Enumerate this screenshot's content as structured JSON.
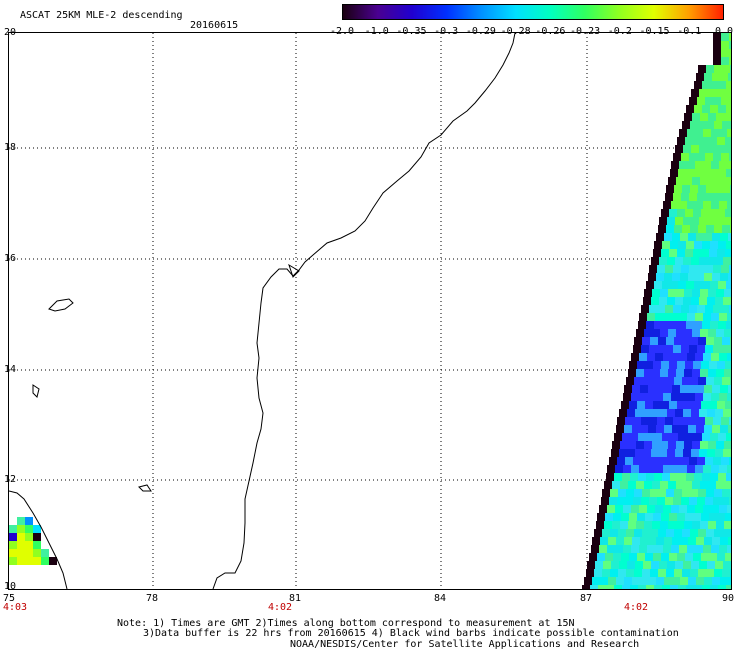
{
  "header": {
    "title": "ASCAT 25KM MLE-2 descending",
    "date": "20160615"
  },
  "colorbar": {
    "labels": [
      "-2.0",
      "-1.0",
      "-0.35",
      "-0.3",
      "-0.29",
      "-0.28",
      "-0.26",
      "-0.23",
      "-0.2",
      "-0.15",
      "-0.1",
      "0.0"
    ],
    "colors": [
      "#1a0010",
      "#4a0090",
      "#2000d0",
      "#0030ff",
      "#0090ff",
      "#00e0ff",
      "#00ffc0",
      "#30ff60",
      "#90ff20",
      "#e0ff00",
      "#ffa000",
      "#ff2000"
    ]
  },
  "axes": {
    "lon_labels": [
      "75",
      "78",
      "81",
      "84",
      "87",
      "90"
    ],
    "lat_labels": [
      "20",
      "18",
      "16",
      "14",
      "12",
      "10"
    ]
  },
  "time_labels": [
    "4:03",
    "4:02",
    "4:02"
  ],
  "notes": [
    "Note: 1) Times are GMT 2)Times along bottom correspond to measurement at 15N",
    "3)Data buffer is 22 hrs from 20160615 4) Black wind barbs indicate possible contamination",
    "NOAA/NESDIS/Center for Satellite Applications and Research"
  ]
}
